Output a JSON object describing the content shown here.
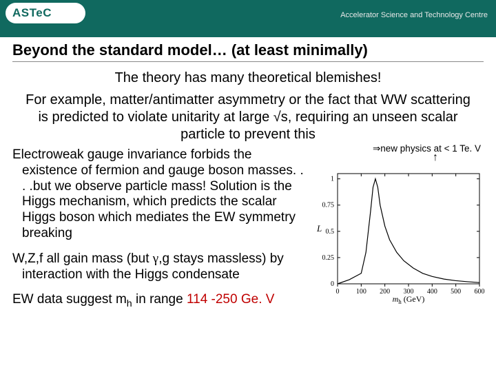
{
  "header": {
    "logo_text": "ASTeC",
    "subtitle": "Accelerator Science and Technology Centre"
  },
  "title": "Beyond the standard model… (at least minimally)",
  "subtitle_line": "The theory has many theoretical blemishes!",
  "lead_paragraph": "For example, matter/antimatter asymmetry or the fact that WW scattering is predicted to violate unitarity at large √s, requiring an unseen scalar particle to prevent this",
  "left": {
    "p1": "Electroweak gauge invariance forbids the existence of fermion and gauge boson masses. . . .but we observe particle mass! Solution is the Higgs mechanism, which predicts the scalar Higgs boson which mediates the EW symmetry breaking",
    "p2_pre": "W,Z,f all gain mass (but ",
    "p2_greek": "γ",
    "p2_post": ",g stays massless) by interaction with the Higgs condensate",
    "p3_pre": "EW data suggest m",
    "p3_sub": "h",
    "p3_mid": " in range ",
    "p3_red": "114 -250 Ge. V"
  },
  "right": {
    "implication_pre": "⇒",
    "implication_text": "new physics at < 1 Te. V"
  },
  "chart": {
    "type": "line",
    "x": [
      0,
      50,
      100,
      120,
      140,
      150,
      160,
      170,
      180,
      200,
      220,
      250,
      280,
      320,
      360,
      400,
      450,
      500,
      550,
      600
    ],
    "y": [
      0,
      0.04,
      0.1,
      0.3,
      0.7,
      0.92,
      1.0,
      0.92,
      0.75,
      0.55,
      0.42,
      0.3,
      0.22,
      0.15,
      0.1,
      0.07,
      0.045,
      0.03,
      0.02,
      0.012
    ],
    "xlim": [
      0,
      600
    ],
    "ylim": [
      0,
      1.05
    ],
    "xticks": [
      0,
      100,
      200,
      300,
      400,
      500,
      600
    ],
    "yticks": [
      0,
      0.25,
      0.5,
      0.75,
      1
    ],
    "ytick_labels": [
      "0",
      "0.25",
      "0.5",
      "0.75",
      "1"
    ],
    "xlabel_pre": "m",
    "xlabel_sub": "h",
    "xlabel_post": " (GeV)",
    "ylabel": "L",
    "line_color": "#000000",
    "background_color": "#ffffff",
    "axis_color": "#000000",
    "tick_fontsize": 10,
    "label_fontsize": 13
  }
}
